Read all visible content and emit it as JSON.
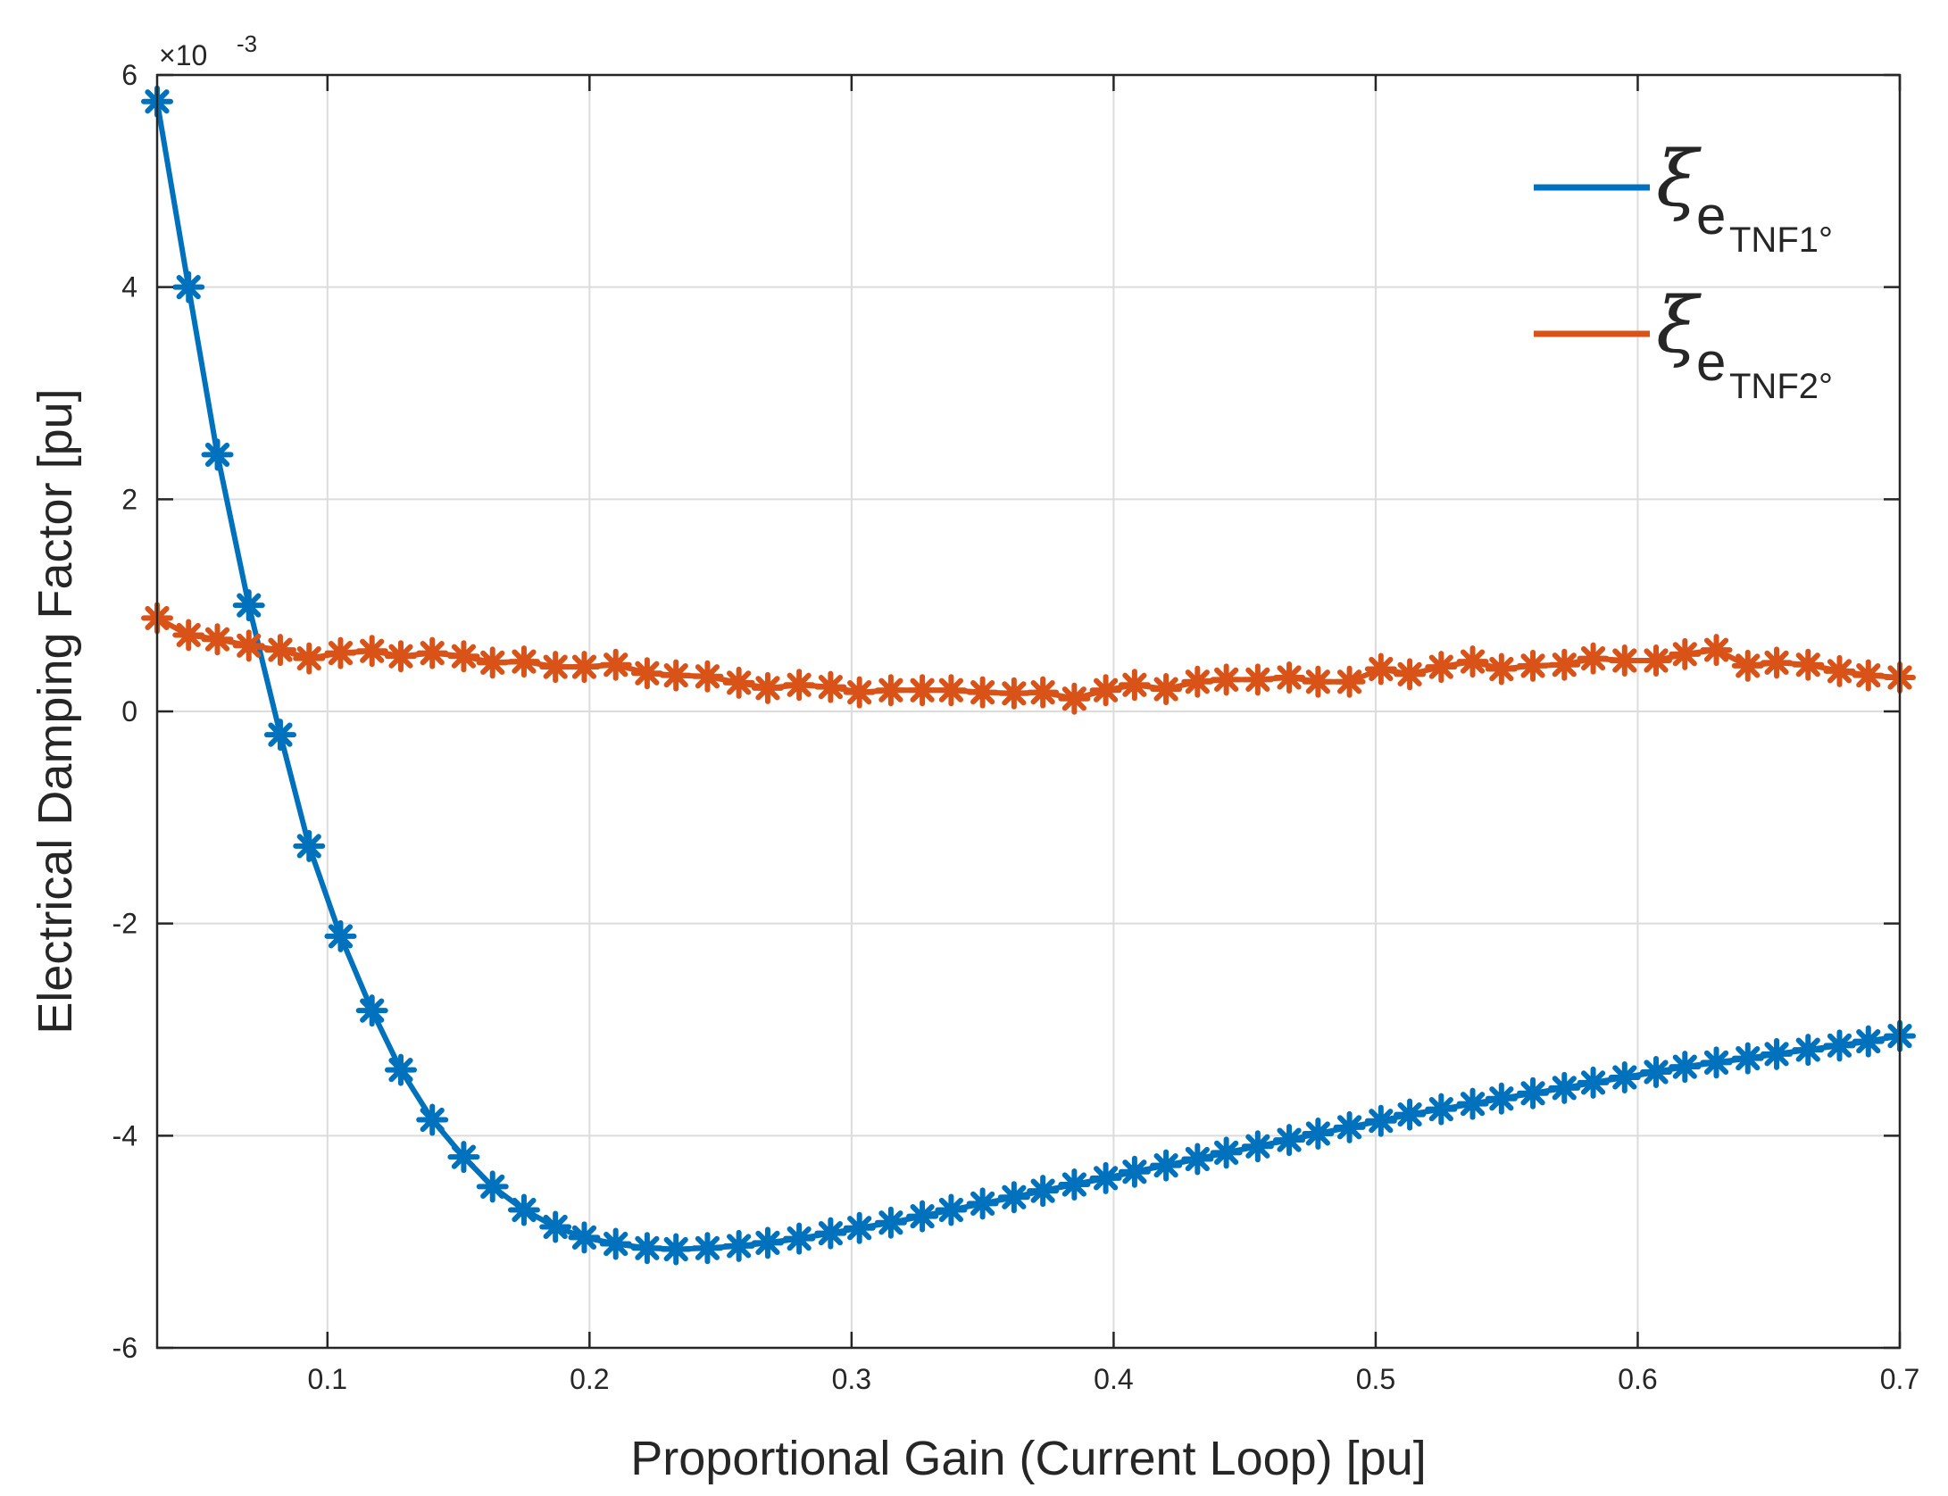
{
  "chart_data": {
    "type": "line",
    "xlabel": "Proportional Gain (Current Loop) [pu]",
    "ylabel": "Electrical Damping Factor [pu]",
    "y_exponent_label": "×10",
    "y_exponent_power": "-3",
    "xlim": [
      0.035,
      0.7
    ],
    "ylim": [
      -6,
      6
    ],
    "grid": true,
    "x_ticks": [
      0.1,
      0.2,
      0.3,
      0.4,
      0.5,
      0.6,
      0.7
    ],
    "x_tick_labels": [
      "0.1",
      "0.2",
      "0.3",
      "0.4",
      "0.5",
      "0.6",
      "0.7"
    ],
    "y_ticks": [
      -6,
      -4,
      -2,
      0,
      2,
      4,
      6
    ],
    "y_tick_labels": [
      "-6",
      "-4",
      "-2",
      "0",
      "2",
      "4",
      "6"
    ],
    "legend": {
      "position": "top-right",
      "entries": [
        {
          "symbol": "ξ",
          "sub": "e",
          "subsub": "TNF1°"
        },
        {
          "symbol": "ξ",
          "sub": "e",
          "subsub": "TNF2°"
        }
      ]
    },
    "series": [
      {
        "name": "ξe TNF1°",
        "color": "#0072BD",
        "marker": "asterisk",
        "x": [
          0.035,
          0.047,
          0.058,
          0.07,
          0.082,
          0.093,
          0.105,
          0.117,
          0.128,
          0.14,
          0.152,
          0.163,
          0.175,
          0.187,
          0.198,
          0.21,
          0.222,
          0.233,
          0.245,
          0.257,
          0.268,
          0.28,
          0.292,
          0.303,
          0.315,
          0.327,
          0.338,
          0.35,
          0.362,
          0.373,
          0.385,
          0.397,
          0.408,
          0.42,
          0.432,
          0.443,
          0.455,
          0.467,
          0.478,
          0.49,
          0.502,
          0.513,
          0.525,
          0.537,
          0.548,
          0.56,
          0.572,
          0.583,
          0.595,
          0.607,
          0.618,
          0.63,
          0.642,
          0.653,
          0.665,
          0.677,
          0.688,
          0.7
        ],
        "y": [
          5.75,
          4.0,
          2.42,
          1.0,
          -0.22,
          -1.27,
          -2.12,
          -2.82,
          -3.38,
          -3.85,
          -4.2,
          -4.48,
          -4.7,
          -4.86,
          -4.96,
          -5.02,
          -5.06,
          -5.07,
          -5.06,
          -5.04,
          -5.01,
          -4.97,
          -4.92,
          -4.87,
          -4.82,
          -4.76,
          -4.7,
          -4.64,
          -4.58,
          -4.52,
          -4.46,
          -4.4,
          -4.34,
          -4.28,
          -4.22,
          -4.16,
          -4.1,
          -4.04,
          -3.98,
          -3.92,
          -3.86,
          -3.8,
          -3.75,
          -3.7,
          -3.65,
          -3.6,
          -3.55,
          -3.5,
          -3.45,
          -3.4,
          -3.35,
          -3.31,
          -3.27,
          -3.23,
          -3.19,
          -3.15,
          -3.11,
          -3.06
        ]
      },
      {
        "name": "ξe TNF2°",
        "color": "#D95319",
        "marker": "asterisk",
        "x": [
          0.035,
          0.047,
          0.058,
          0.07,
          0.082,
          0.093,
          0.105,
          0.117,
          0.128,
          0.14,
          0.152,
          0.163,
          0.175,
          0.187,
          0.198,
          0.21,
          0.222,
          0.233,
          0.245,
          0.257,
          0.268,
          0.28,
          0.292,
          0.303,
          0.315,
          0.327,
          0.338,
          0.35,
          0.362,
          0.373,
          0.385,
          0.397,
          0.408,
          0.42,
          0.432,
          0.443,
          0.455,
          0.467,
          0.478,
          0.49,
          0.502,
          0.513,
          0.525,
          0.537,
          0.548,
          0.56,
          0.572,
          0.583,
          0.595,
          0.607,
          0.618,
          0.63,
          0.642,
          0.653,
          0.665,
          0.677,
          0.688,
          0.7
        ],
        "y": [
          0.88,
          0.72,
          0.68,
          0.62,
          0.58,
          0.5,
          0.55,
          0.57,
          0.52,
          0.55,
          0.52,
          0.46,
          0.47,
          0.42,
          0.42,
          0.44,
          0.36,
          0.34,
          0.33,
          0.27,
          0.22,
          0.25,
          0.23,
          0.18,
          0.2,
          0.2,
          0.2,
          0.18,
          0.17,
          0.18,
          0.12,
          0.2,
          0.25,
          0.21,
          0.28,
          0.3,
          0.3,
          0.32,
          0.28,
          0.28,
          0.4,
          0.35,
          0.42,
          0.47,
          0.4,
          0.43,
          0.44,
          0.5,
          0.48,
          0.48,
          0.54,
          0.58,
          0.43,
          0.46,
          0.44,
          0.38,
          0.34,
          0.32
        ]
      }
    ]
  }
}
